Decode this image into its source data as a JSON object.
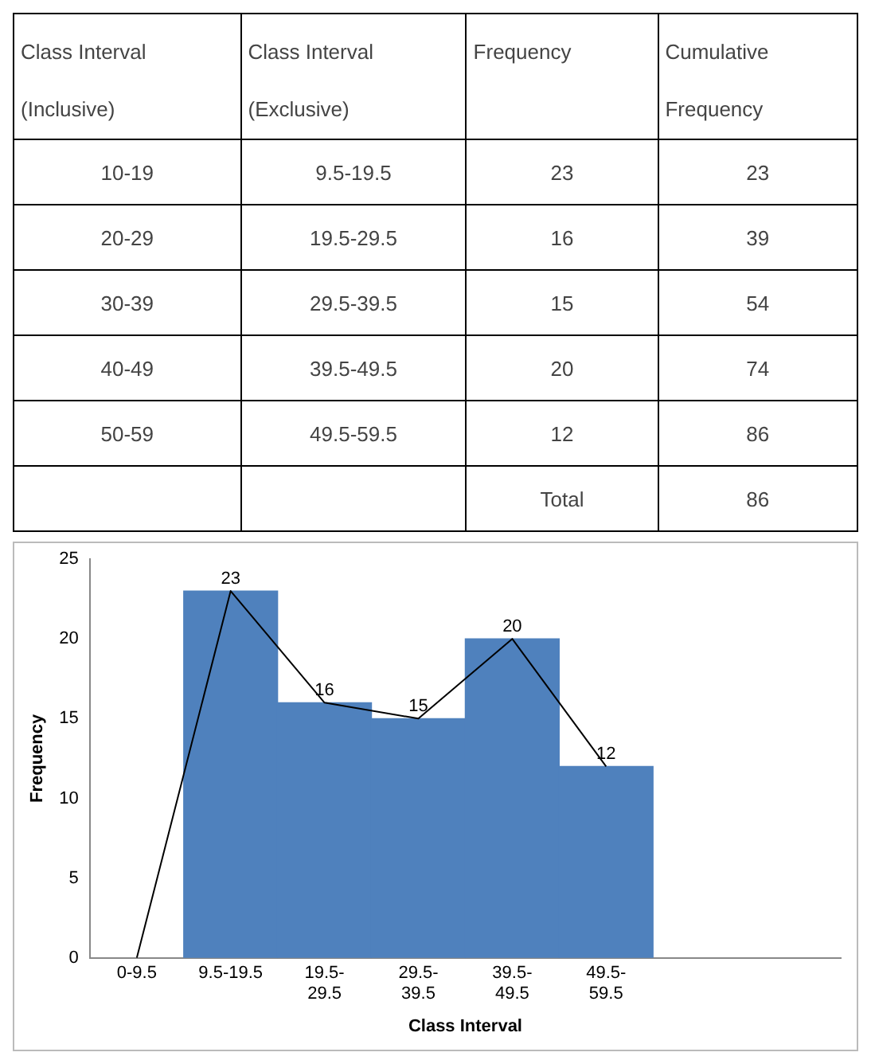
{
  "chart_data": [
    {
      "type": "other",
      "categories": [
        "Class Interval (Inclusive)",
        "Class Interval (Exclusive)",
        "Frequency",
        "Cumulative Frequency"
      ],
      "cell_labels": [
        [
          "10-19",
          "9.5-19.5",
          "23",
          "23"
        ],
        [
          "20-29",
          "19.5-29.5",
          "16",
          "39"
        ],
        [
          "30-39",
          "29.5-39.5",
          "15",
          "54"
        ],
        [
          "40-49",
          "39.5-49.5",
          "20",
          "74"
        ],
        [
          "50-59",
          "49.5-59.5",
          "12",
          "86"
        ],
        [
          null,
          null,
          "Total",
          "86"
        ]
      ]
    },
    {
      "type": "bar",
      "xlabel": "Class Interval",
      "ylabel": "Frequency",
      "categories": [
        "0-9.5",
        "9.5-19.5",
        "19.5-29.5",
        "29.5-39.5",
        "39.5-49.5",
        "49.5-59.5",
        null,
        null
      ],
      "series": [
        {
          "type": "bar",
          "color": "#4f81bd",
          "values": [
            null,
            23,
            16,
            15,
            20,
            12,
            null,
            null
          ],
          "value_labels": [
            null,
            "23",
            "16",
            "15",
            "20",
            "12",
            null,
            null
          ]
        },
        {
          "type": "line",
          "color": "#000000",
          "values": [
            0,
            23,
            16,
            15,
            20,
            12,
            null,
            null
          ]
        }
      ],
      "ylim": [
        0,
        25
      ],
      "yticks": [
        0,
        5,
        10,
        15,
        20,
        25
      ],
      "marker": "none"
    }
  ]
}
